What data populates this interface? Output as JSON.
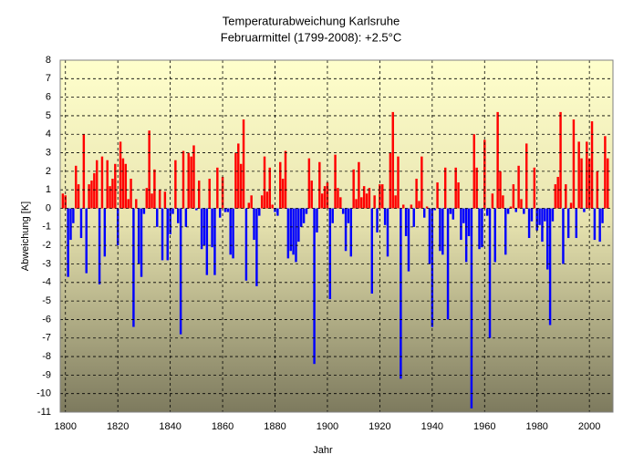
{
  "chart_data": {
    "type": "bar",
    "title": "Temperaturabweichung Karlsruhe",
    "subtitle": "Februarmittel (1799-2008): +2.5°C",
    "y_label": "Abweichung [K]",
    "x_label": "Jahr",
    "positive_color": "#ff0000",
    "negative_color": "#0000ff",
    "grid": true,
    "xlim": [
      1798,
      2009
    ],
    "xticks": [
      1800,
      1820,
      1840,
      1860,
      1880,
      1900,
      1920,
      1940,
      1960,
      1980,
      2000
    ],
    "ylim": [
      -11,
      8
    ],
    "yticks": [
      -11,
      -10,
      -9,
      -8,
      -7,
      -6,
      -5,
      -4,
      -3,
      -2,
      -1,
      0,
      1,
      2,
      3,
      4,
      5,
      6,
      7,
      8
    ],
    "x": [
      1799,
      1800,
      1801,
      1802,
      1803,
      1804,
      1805,
      1806,
      1807,
      1808,
      1809,
      1810,
      1811,
      1812,
      1813,
      1814,
      1815,
      1816,
      1817,
      1818,
      1819,
      1820,
      1821,
      1822,
      1823,
      1824,
      1825,
      1826,
      1827,
      1828,
      1829,
      1830,
      1831,
      1832,
      1833,
      1834,
      1835,
      1836,
      1837,
      1838,
      1839,
      1840,
      1841,
      1842,
      1843,
      1844,
      1845,
      1846,
      1847,
      1848,
      1849,
      1850,
      1851,
      1852,
      1853,
      1854,
      1855,
      1856,
      1857,
      1858,
      1859,
      1860,
      1861,
      1862,
      1863,
      1864,
      1865,
      1866,
      1867,
      1868,
      1869,
      1870,
      1871,
      1872,
      1873,
      1874,
      1875,
      1876,
      1877,
      1878,
      1879,
      1880,
      1881,
      1882,
      1883,
      1884,
      1885,
      1886,
      1887,
      1888,
      1889,
      1890,
      1891,
      1892,
      1893,
      1894,
      1895,
      1896,
      1897,
      1898,
      1899,
      1900,
      1901,
      1902,
      1903,
      1904,
      1905,
      1906,
      1907,
      1908,
      1909,
      1910,
      1911,
      1912,
      1913,
      1914,
      1915,
      1916,
      1917,
      1918,
      1919,
      1920,
      1921,
      1922,
      1923,
      1924,
      1925,
      1926,
      1927,
      1928,
      1929,
      1930,
      1931,
      1932,
      1933,
      1934,
      1935,
      1936,
      1937,
      1938,
      1939,
      1940,
      1941,
      1942,
      1943,
      1944,
      1945,
      1946,
      1947,
      1948,
      1949,
      1950,
      1951,
      1952,
      1953,
      1954,
      1955,
      1956,
      1957,
      1958,
      1959,
      1960,
      1961,
      1962,
      1963,
      1964,
      1965,
      1966,
      1967,
      1968,
      1969,
      1970,
      1971,
      1972,
      1973,
      1974,
      1975,
      1976,
      1977,
      1978,
      1979,
      1980,
      1981,
      1982,
      1983,
      1984,
      1985,
      1986,
      1987,
      1988,
      1989,
      1990,
      1991,
      1992,
      1993,
      1994,
      1995,
      1996,
      1997,
      1998,
      1999,
      2000,
      2001,
      2002,
      2003,
      2004,
      2005,
      2006,
      2007
    ],
    "values": [
      0.8,
      0.7,
      -3.7,
      -1.7,
      -0.8,
      2.3,
      1.3,
      -1.6,
      4.0,
      -3.5,
      1.3,
      1.5,
      1.9,
      2.6,
      -4.1,
      2.8,
      -2.6,
      2.6,
      1.2,
      1.6,
      2.4,
      -2.0,
      3.6,
      2.7,
      2.4,
      0.5,
      1.6,
      -6.4,
      0.5,
      -3.0,
      -3.7,
      -0.3,
      1.1,
      4.2,
      0.8,
      2.1,
      -1.0,
      1.0,
      -2.8,
      0.9,
      -2.8,
      -1.4,
      -0.3,
      2.6,
      -0.8,
      -6.8,
      3.1,
      -1.0,
      3.0,
      2.8,
      3.4,
      -0.1,
      1.5,
      -2.2,
      -2.0,
      -3.6,
      1.6,
      -2.1,
      -3.6,
      2.2,
      -0.5,
      1.7,
      -0.2,
      -0.2,
      -2.5,
      -2.7,
      3.0,
      3.5,
      2.4,
      4.8,
      -3.9,
      0.3,
      0.7,
      -1.7,
      -4.2,
      -0.4,
      0.7,
      2.8,
      0.9,
      2.2,
      0.2,
      -0.2,
      -0.4,
      2.5,
      1.6,
      3.1,
      -2.7,
      -2.3,
      -2.5,
      -2.9,
      -1.8,
      -1.0,
      -0.8,
      -0.3,
      2.7,
      1.5,
      -8.4,
      -1.3,
      2.5,
      0.8,
      1.2,
      1.4,
      -4.9,
      -0.8,
      2.9,
      1.1,
      0.6,
      -0.3,
      -2.3,
      -0.8,
      -2.6,
      2.1,
      0.5,
      2.5,
      0.6,
      1.2,
      0.8,
      1.1,
      -4.6,
      0.7,
      -1.3,
      1.3,
      1.3,
      -0.9,
      -2.6,
      3.0,
      5.2,
      0.7,
      2.8,
      -9.2,
      0.2,
      -1.5,
      -3.4,
      0.2,
      -1.0,
      1.6,
      0.4,
      2.8,
      -0.5,
      0.1,
      -3.0,
      -6.4,
      -0.1,
      1.4,
      -2.3,
      -2.5,
      2.2,
      -6.0,
      -0.3,
      -0.6,
      2.2,
      1.4,
      -1.7,
      -0.8,
      -2.9,
      -1.5,
      -10.8,
      4.0,
      2.2,
      -2.2,
      -2.1,
      3.7,
      -0.4,
      -7.0,
      0.8,
      -2.9,
      5.2,
      2.0,
      0.7,
      -2.5,
      -0.3,
      0.1,
      1.3,
      -0.2,
      2.3,
      0.5,
      -0.3,
      3.5,
      -1.6,
      -0.7,
      2.2,
      -1.2,
      -0.9,
      -1.8,
      -0.7,
      -3.3,
      -6.3,
      -0.7,
      1.3,
      1.7,
      5.2,
      -3.0,
      1.3,
      -1.6,
      0.3,
      4.8,
      -1.6,
      3.6,
      2.7,
      -0.2,
      3.6,
      2.7,
      4.7,
      -1.7,
      2.0,
      -1.8,
      -0.8,
      3.9,
      2.7
    ]
  }
}
